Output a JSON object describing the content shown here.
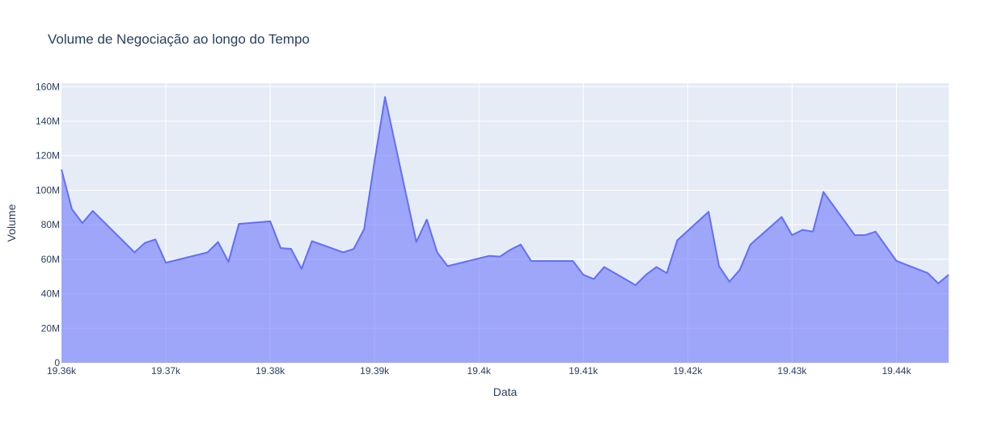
{
  "chart_data": {
    "type": "area",
    "title": "Volume de Negociação ao longo do Tempo",
    "xlabel": "Data",
    "ylabel": "Volume",
    "xlim": [
      19360,
      19445
    ],
    "ylim": [
      0,
      162000000
    ],
    "grid": true,
    "legend": "none",
    "colors": {
      "line": "#636efa",
      "fill": "rgba(99,110,250,0.55)",
      "plot_bg": "#e5ecf6",
      "grid": "#ffffff",
      "text": "#2a3f5f"
    },
    "x_ticks": [
      19360,
      19370,
      19380,
      19390,
      19400,
      19410,
      19420,
      19430,
      19440
    ],
    "x_tick_labels": [
      "19.36k",
      "19.37k",
      "19.38k",
      "19.39k",
      "19.4k",
      "19.41k",
      "19.42k",
      "19.43k",
      "19.44k"
    ],
    "y_ticks": [
      0,
      20000000,
      40000000,
      60000000,
      80000000,
      100000000,
      120000000,
      140000000,
      160000000
    ],
    "y_tick_labels": [
      "0",
      "20M",
      "40M",
      "60M",
      "80M",
      "100M",
      "120M",
      "140M",
      "160M"
    ],
    "series": [
      {
        "x": [
          19360,
          19361,
          19362,
          19363,
          19366,
          19367,
          19368,
          19369,
          19370,
          19374,
          19375,
          19376,
          19377,
          19380,
          19381,
          19382,
          19383,
          19384,
          19387,
          19388,
          19389,
          19390,
          19391,
          19394,
          19395,
          19396,
          19397,
          19401,
          19402,
          19403,
          19404,
          19405,
          19409,
          19410,
          19411,
          19412,
          19415,
          19416,
          19417,
          19418,
          19419,
          19422,
          19423,
          19424,
          19425,
          19426,
          19429,
          19430,
          19431,
          19432,
          19433,
          19436,
          19437,
          19438,
          19440,
          19443,
          19444,
          19445
        ],
        "values": [
          112000000,
          89000000,
          81000000,
          88000000,
          70000000,
          64000000,
          69500000,
          71500000,
          58000000,
          64000000,
          70000000,
          58500000,
          80500000,
          82000000,
          66500000,
          66000000,
          54500000,
          70500000,
          64000000,
          66000000,
          77500000,
          117000000,
          154000000,
          70000000,
          83000000,
          64000000,
          56000000,
          62000000,
          61500000,
          65500000,
          68500000,
          59000000,
          59000000,
          51000000,
          48500000,
          55500000,
          45000000,
          51000000,
          55500000,
          52000000,
          71000000,
          87500000,
          56000000,
          47000000,
          54000000,
          68500000,
          84500000,
          74000000,
          77000000,
          76000000,
          99000000,
          74000000,
          74000000,
          76000000,
          59000000,
          52000000,
          46000000,
          51000000
        ]
      }
    ]
  }
}
